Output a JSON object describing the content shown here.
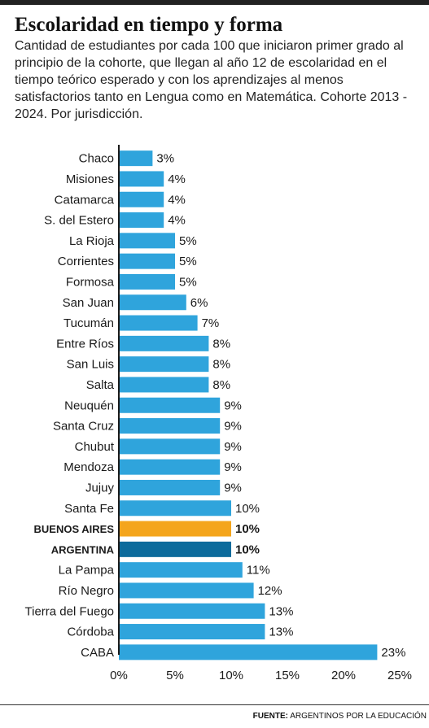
{
  "title": "Escolaridad en tiempo y forma",
  "subtitle": "Cantidad de estudiantes por cada 100 que iniciaron primer grado al principio de la cohorte, que llegan al año 12 de escolaridad en el tiempo teórico esperado y con los aprendizajes al menos satisfactorios tanto en Lengua como en Matemática. Cohorte 2013 - 2024. Por jurisdicción.",
  "footer": {
    "label": "FUENTE:",
    "text": "ARGENTINOS POR LA EDUCACIÓN"
  },
  "colors": {
    "bar": "#2fa4dc",
    "highlight_buenos_aires": "#f4a51c",
    "highlight_argentina": "#0c6b9c",
    "axis": "#1a1a1a"
  },
  "chart_data": {
    "type": "bar",
    "orientation": "horizontal",
    "categories": [
      "Chaco",
      "Misiones",
      "Catamarca",
      "S. del Estero",
      "La Rioja",
      "Corrientes",
      "Formosa",
      "San Juan",
      "Tucumán",
      "Entre Ríos",
      "San Luis",
      "Salta",
      "Neuquén",
      "Santa Cruz",
      "Chubut",
      "Mendoza",
      "Jujuy",
      "Santa Fe",
      "BUENOS AIRES",
      "ARGENTINA",
      "La Pampa",
      "Río Negro",
      "Tierra del Fuego",
      "Córdoba",
      "CABA"
    ],
    "values": [
      3,
      4,
      4,
      4,
      5,
      5,
      5,
      6,
      7,
      8,
      8,
      8,
      9,
      9,
      9,
      9,
      9,
      10,
      10,
      10,
      11,
      12,
      13,
      13,
      23
    ],
    "data_labels": [
      "3%",
      "4%",
      "4%",
      "4%",
      "5%",
      "5%",
      "5%",
      "6%",
      "7%",
      "8%",
      "8%",
      "8%",
      "9%",
      "9%",
      "9%",
      "9%",
      "9%",
      "10%",
      "10%",
      "10%",
      "11%",
      "12%",
      "13%",
      "13%",
      "23%"
    ],
    "highlighted": [
      "BUENOS AIRES",
      "ARGENTINA"
    ],
    "xlim": [
      0,
      25
    ],
    "xticks": [
      0,
      5,
      10,
      15,
      20,
      25
    ],
    "xtick_labels": [
      "0%",
      "5%",
      "10%",
      "15%",
      "20%",
      "25%"
    ],
    "grid": false
  }
}
